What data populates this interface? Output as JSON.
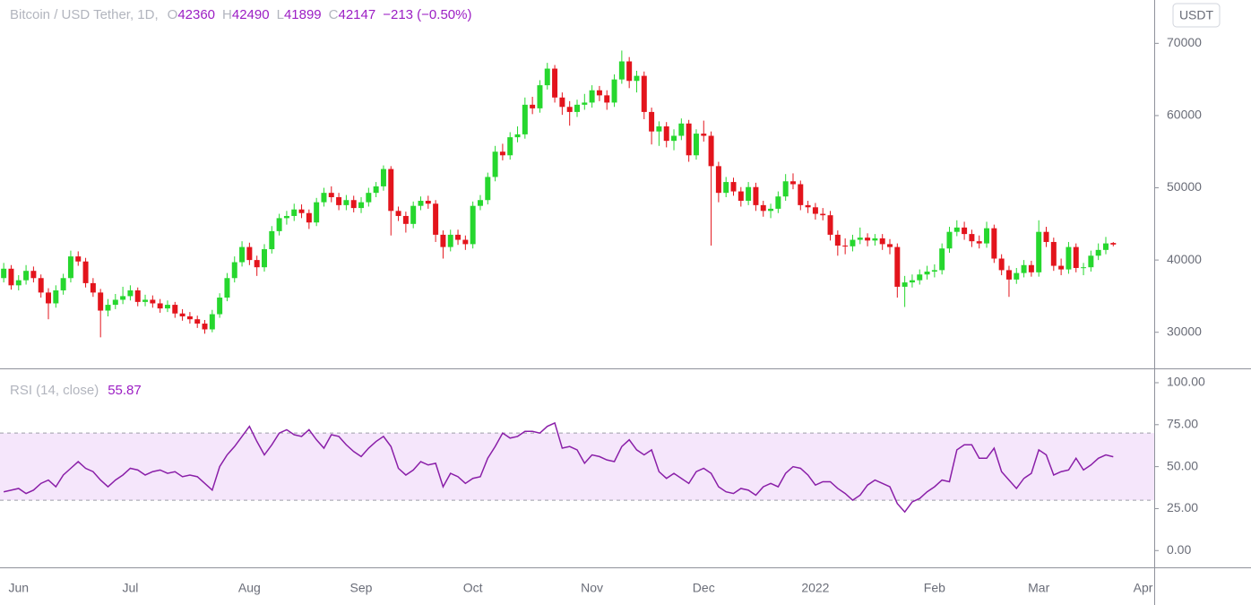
{
  "chart_data": [
    {
      "type": "candlestick",
      "title": "Bitcoin / USD Tether, 1D,",
      "ohlc_labels": [
        "O",
        "H",
        "L",
        "C"
      ],
      "change": "−213 (−0.50%)",
      "currency": "USDT",
      "up_color": "#26d72e",
      "down_color": "#e3141c",
      "ylim": [
        25000,
        76000
      ],
      "yticks": [
        30000,
        40000,
        50000,
        60000,
        70000
      ],
      "categories": [
        null,
        null,
        "Jun",
        null,
        null,
        null,
        null,
        null,
        null,
        null,
        null,
        null,
        null,
        null,
        null,
        null,
        null,
        "Jul",
        null,
        null,
        null,
        null,
        null,
        null,
        null,
        null,
        null,
        null,
        null,
        null,
        null,
        null,
        null,
        "Aug",
        null,
        null,
        null,
        null,
        null,
        null,
        null,
        null,
        null,
        null,
        null,
        null,
        null,
        null,
        "Sep",
        null,
        null,
        null,
        null,
        null,
        null,
        null,
        null,
        null,
        null,
        null,
        null,
        null,
        null,
        "Oct",
        null,
        null,
        null,
        null,
        null,
        null,
        null,
        null,
        null,
        null,
        null,
        null,
        null,
        null,
        null,
        "Nov",
        null,
        null,
        null,
        null,
        null,
        null,
        null,
        null,
        null,
        null,
        null,
        null,
        null,
        null,
        "Dec",
        null,
        null,
        null,
        null,
        null,
        null,
        null,
        null,
        null,
        null,
        null,
        null,
        null,
        null,
        "2022",
        null,
        null,
        null,
        null,
        null,
        null,
        null,
        null,
        null,
        null,
        null,
        null,
        null,
        null,
        null,
        "Feb",
        null,
        null,
        null,
        null,
        null,
        null,
        null,
        null,
        null,
        null,
        null,
        null,
        null,
        "Mar",
        null,
        null,
        null,
        null,
        null,
        null,
        null,
        null,
        null,
        null,
        null,
        null,
        null,
        "Apr",
        null
      ],
      "open": [
        37500,
        38800,
        36500,
        37200,
        38500,
        37500,
        35500,
        34000,
        35800,
        37500,
        40500,
        39800,
        36800,
        35500,
        33000,
        33800,
        34500,
        35000,
        35800,
        34200,
        34500,
        34000,
        33300,
        33800,
        32600,
        32200,
        31800,
        31200,
        30400,
        32500,
        34800,
        37500,
        39700,
        41800,
        40000,
        39000,
        41500,
        44000,
        45800,
        46100,
        47000,
        46500,
        45200,
        48000,
        49300,
        48700,
        47600,
        48300,
        47200,
        48000,
        49300,
        50200,
        52600,
        46800,
        46100,
        45000,
        47500,
        48200,
        47800,
        43500,
        41800,
        43500,
        42800,
        42200,
        47500,
        48300,
        51500,
        55000,
        54500,
        57000,
        57400,
        61500,
        61000,
        64200,
        66500,
        62500,
        61200,
        60500,
        61500,
        61800,
        63500,
        62800,
        61800,
        65000,
        67500,
        64800,
        65500,
        60500,
        57800,
        58500,
        56500,
        57200,
        58900,
        54500,
        57500,
        57200,
        53000,
        49300,
        50800,
        49500,
        48200,
        50100,
        47600,
        46800,
        47100,
        48800,
        50900,
        50500,
        47600,
        47300,
        46400,
        46200,
        43500,
        42000,
        41900,
        42800,
        43100,
        42700,
        43000,
        42200,
        41800,
        36300,
        36900,
        37200,
        38000,
        38400,
        38600,
        41600,
        43900,
        44500,
        43600,
        42600,
        42300,
        44400,
        40200,
        38600,
        37300,
        38200,
        39300,
        38300,
        43900,
        42500,
        39200,
        38700,
        41800,
        38900,
        39000,
        40600,
        41400,
        42360,
        null,
        null,
        null,
        null,
        null
      ],
      "high": [
        39600,
        39300,
        37900,
        39300,
        39100,
        38000,
        36100,
        36500,
        38100,
        41300,
        41200,
        40300,
        37500,
        36000,
        34600,
        35300,
        36300,
        36500,
        36200,
        35200,
        35100,
        34600,
        34400,
        34200,
        33200,
        32800,
        32300,
        31700,
        33100,
        35400,
        38200,
        40500,
        42600,
        42400,
        40600,
        42200,
        44700,
        46400,
        46800,
        47800,
        47700,
        47000,
        48600,
        50000,
        50200,
        49300,
        49000,
        48900,
        48700,
        50000,
        50800,
        53100,
        53000,
        47400,
        46700,
        48100,
        48800,
        48900,
        48300,
        44100,
        44200,
        44200,
        43400,
        48100,
        49000,
        52100,
        55800,
        56100,
        57700,
        58500,
        62500,
        62600,
        64900,
        67300,
        67000,
        63200,
        62000,
        62200,
        63000,
        64200,
        64100,
        63500,
        65700,
        69000,
        68100,
        66200,
        66100,
        61100,
        59200,
        59100,
        58100,
        59600,
        59400,
        58100,
        59300,
        57800,
        53600,
        51500,
        51400,
        50100,
        50800,
        50700,
        48200,
        47800,
        49500,
        51900,
        52000,
        51000,
        48200,
        47900,
        47200,
        46800,
        44100,
        43000,
        43500,
        44500,
        43700,
        43600,
        43600,
        42900,
        42300,
        37800,
        38000,
        38700,
        39200,
        39400,
        42300,
        44600,
        45500,
        45300,
        44200,
        43400,
        45300,
        44900,
        40800,
        39200,
        38900,
        40000,
        39900,
        45500,
        44600,
        43100,
        40200,
        42500,
        42300,
        39600,
        41300,
        42300,
        43200,
        42490,
        null,
        null,
        null,
        null,
        null
      ],
      "low": [
        36900,
        35900,
        35800,
        36600,
        36900,
        34800,
        31800,
        33400,
        35200,
        36900,
        39200,
        36200,
        34900,
        29300,
        32200,
        33200,
        33900,
        34400,
        33600,
        33600,
        33400,
        32700,
        32800,
        32000,
        31600,
        31200,
        30600,
        29800,
        30000,
        32000,
        34300,
        36900,
        39100,
        39300,
        37800,
        38400,
        40900,
        43400,
        44900,
        45400,
        45800,
        44300,
        44700,
        47400,
        48000,
        46900,
        46900,
        46600,
        46500,
        47400,
        48700,
        49600,
        43400,
        45400,
        43800,
        44400,
        46900,
        47100,
        42500,
        40200,
        41200,
        42100,
        41400,
        41600,
        46900,
        47700,
        50900,
        53800,
        53900,
        56300,
        56800,
        60200,
        60400,
        63600,
        61800,
        60100,
        58600,
        59800,
        60800,
        61100,
        62000,
        60800,
        61200,
        64400,
        63800,
        63200,
        59500,
        56000,
        55800,
        55600,
        55200,
        56600,
        53600,
        53900,
        56400,
        42000,
        48000,
        48700,
        48900,
        47400,
        47600,
        46800,
        46000,
        45800,
        46500,
        48200,
        49800,
        46900,
        46500,
        45600,
        45500,
        42700,
        40600,
        40800,
        41200,
        42200,
        41900,
        42000,
        41400,
        40800,
        34800,
        33500,
        36200,
        36600,
        37300,
        37600,
        38000,
        41000,
        43300,
        42800,
        41800,
        41600,
        41700,
        39600,
        37900,
        34900,
        36700,
        37600,
        37700,
        37700,
        41800,
        38500,
        37900,
        38100,
        38300,
        37900,
        38400,
        40000,
        40800,
        41899,
        null,
        null,
        null,
        null,
        null
      ],
      "close": [
        38800,
        36500,
        37200,
        38500,
        37500,
        35500,
        34000,
        35800,
        37500,
        40500,
        39800,
        36800,
        35500,
        33000,
        33800,
        34500,
        35000,
        35800,
        34200,
        34500,
        34000,
        33300,
        33800,
        32600,
        32200,
        31800,
        31200,
        30400,
        32500,
        34800,
        37500,
        39700,
        41800,
        40000,
        39000,
        41500,
        44000,
        45800,
        46100,
        47000,
        46500,
        45200,
        48000,
        49300,
        48700,
        47600,
        48300,
        47200,
        48000,
        49300,
        50200,
        52600,
        46800,
        46100,
        45000,
        47500,
        48200,
        47800,
        43500,
        41800,
        43500,
        42800,
        42200,
        47500,
        48300,
        51500,
        55000,
        54500,
        57000,
        57400,
        61500,
        61000,
        64200,
        66500,
        62500,
        61200,
        60500,
        61500,
        61800,
        63500,
        62800,
        61800,
        65000,
        67500,
        64800,
        65500,
        60500,
        57800,
        58500,
        56500,
        57200,
        58900,
        54500,
        57500,
        57200,
        53000,
        49300,
        50800,
        49500,
        48200,
        50100,
        47600,
        46800,
        47100,
        48800,
        50900,
        50500,
        47600,
        47300,
        46400,
        46200,
        43500,
        42000,
        41900,
        42800,
        43100,
        42700,
        43000,
        42200,
        41800,
        36300,
        36900,
        37200,
        38000,
        38400,
        38600,
        41600,
        43900,
        44500,
        43600,
        42600,
        42300,
        44400,
        40200,
        38600,
        37300,
        38200,
        39300,
        38300,
        43900,
        42500,
        39200,
        38700,
        41800,
        38900,
        39000,
        40600,
        41400,
        42300,
        42147,
        null,
        null,
        null,
        null,
        null
      ]
    },
    {
      "type": "line",
      "title": "RSI (14, close)",
      "color": "#8a1fa8",
      "band": [
        30,
        70
      ],
      "band_color": "#f5e6fb",
      "ylim": [
        -10,
        108
      ],
      "yticks": [
        {
          "value": 0,
          "label": "0.00"
        },
        {
          "value": 25,
          "label": "25.00"
        },
        {
          "value": 50,
          "label": "50.00"
        },
        {
          "value": 75,
          "label": "75.00"
        },
        {
          "value": 100,
          "label": "100.00"
        }
      ],
      "values": [
        35,
        36,
        37,
        34,
        36,
        40,
        42,
        38,
        45,
        49,
        53,
        49,
        47,
        42,
        38,
        42,
        45,
        49,
        48,
        45,
        47,
        48,
        46,
        47,
        44,
        45,
        44,
        40,
        36,
        50,
        57,
        62,
        68,
        74,
        65,
        57,
        63,
        70,
        72,
        69,
        68,
        72,
        66,
        61,
        69,
        68,
        63,
        59,
        56,
        61,
        65,
        68,
        62,
        49,
        45,
        48,
        53,
        51,
        52,
        38,
        46,
        44,
        40,
        43,
        44,
        55,
        62,
        70,
        67,
        68,
        71,
        71,
        70,
        74,
        76,
        61,
        62,
        60,
        52,
        57,
        56,
        54,
        53,
        62,
        66,
        60,
        57,
        60,
        47,
        43,
        46,
        43,
        40,
        47,
        49,
        46,
        38,
        35,
        34,
        37,
        36,
        33,
        38,
        40,
        38,
        46,
        50,
        49,
        45,
        39,
        41,
        41,
        37,
        34,
        30,
        33,
        39,
        42,
        40,
        38,
        28,
        23,
        29,
        31,
        35,
        38,
        42,
        41,
        60,
        63,
        63,
        55,
        55,
        61,
        47,
        42,
        37,
        43,
        46,
        60,
        57,
        45,
        47,
        48,
        55,
        48,
        51,
        55,
        57,
        55.87,
        null,
        null,
        null,
        null,
        null
      ]
    }
  ]
}
